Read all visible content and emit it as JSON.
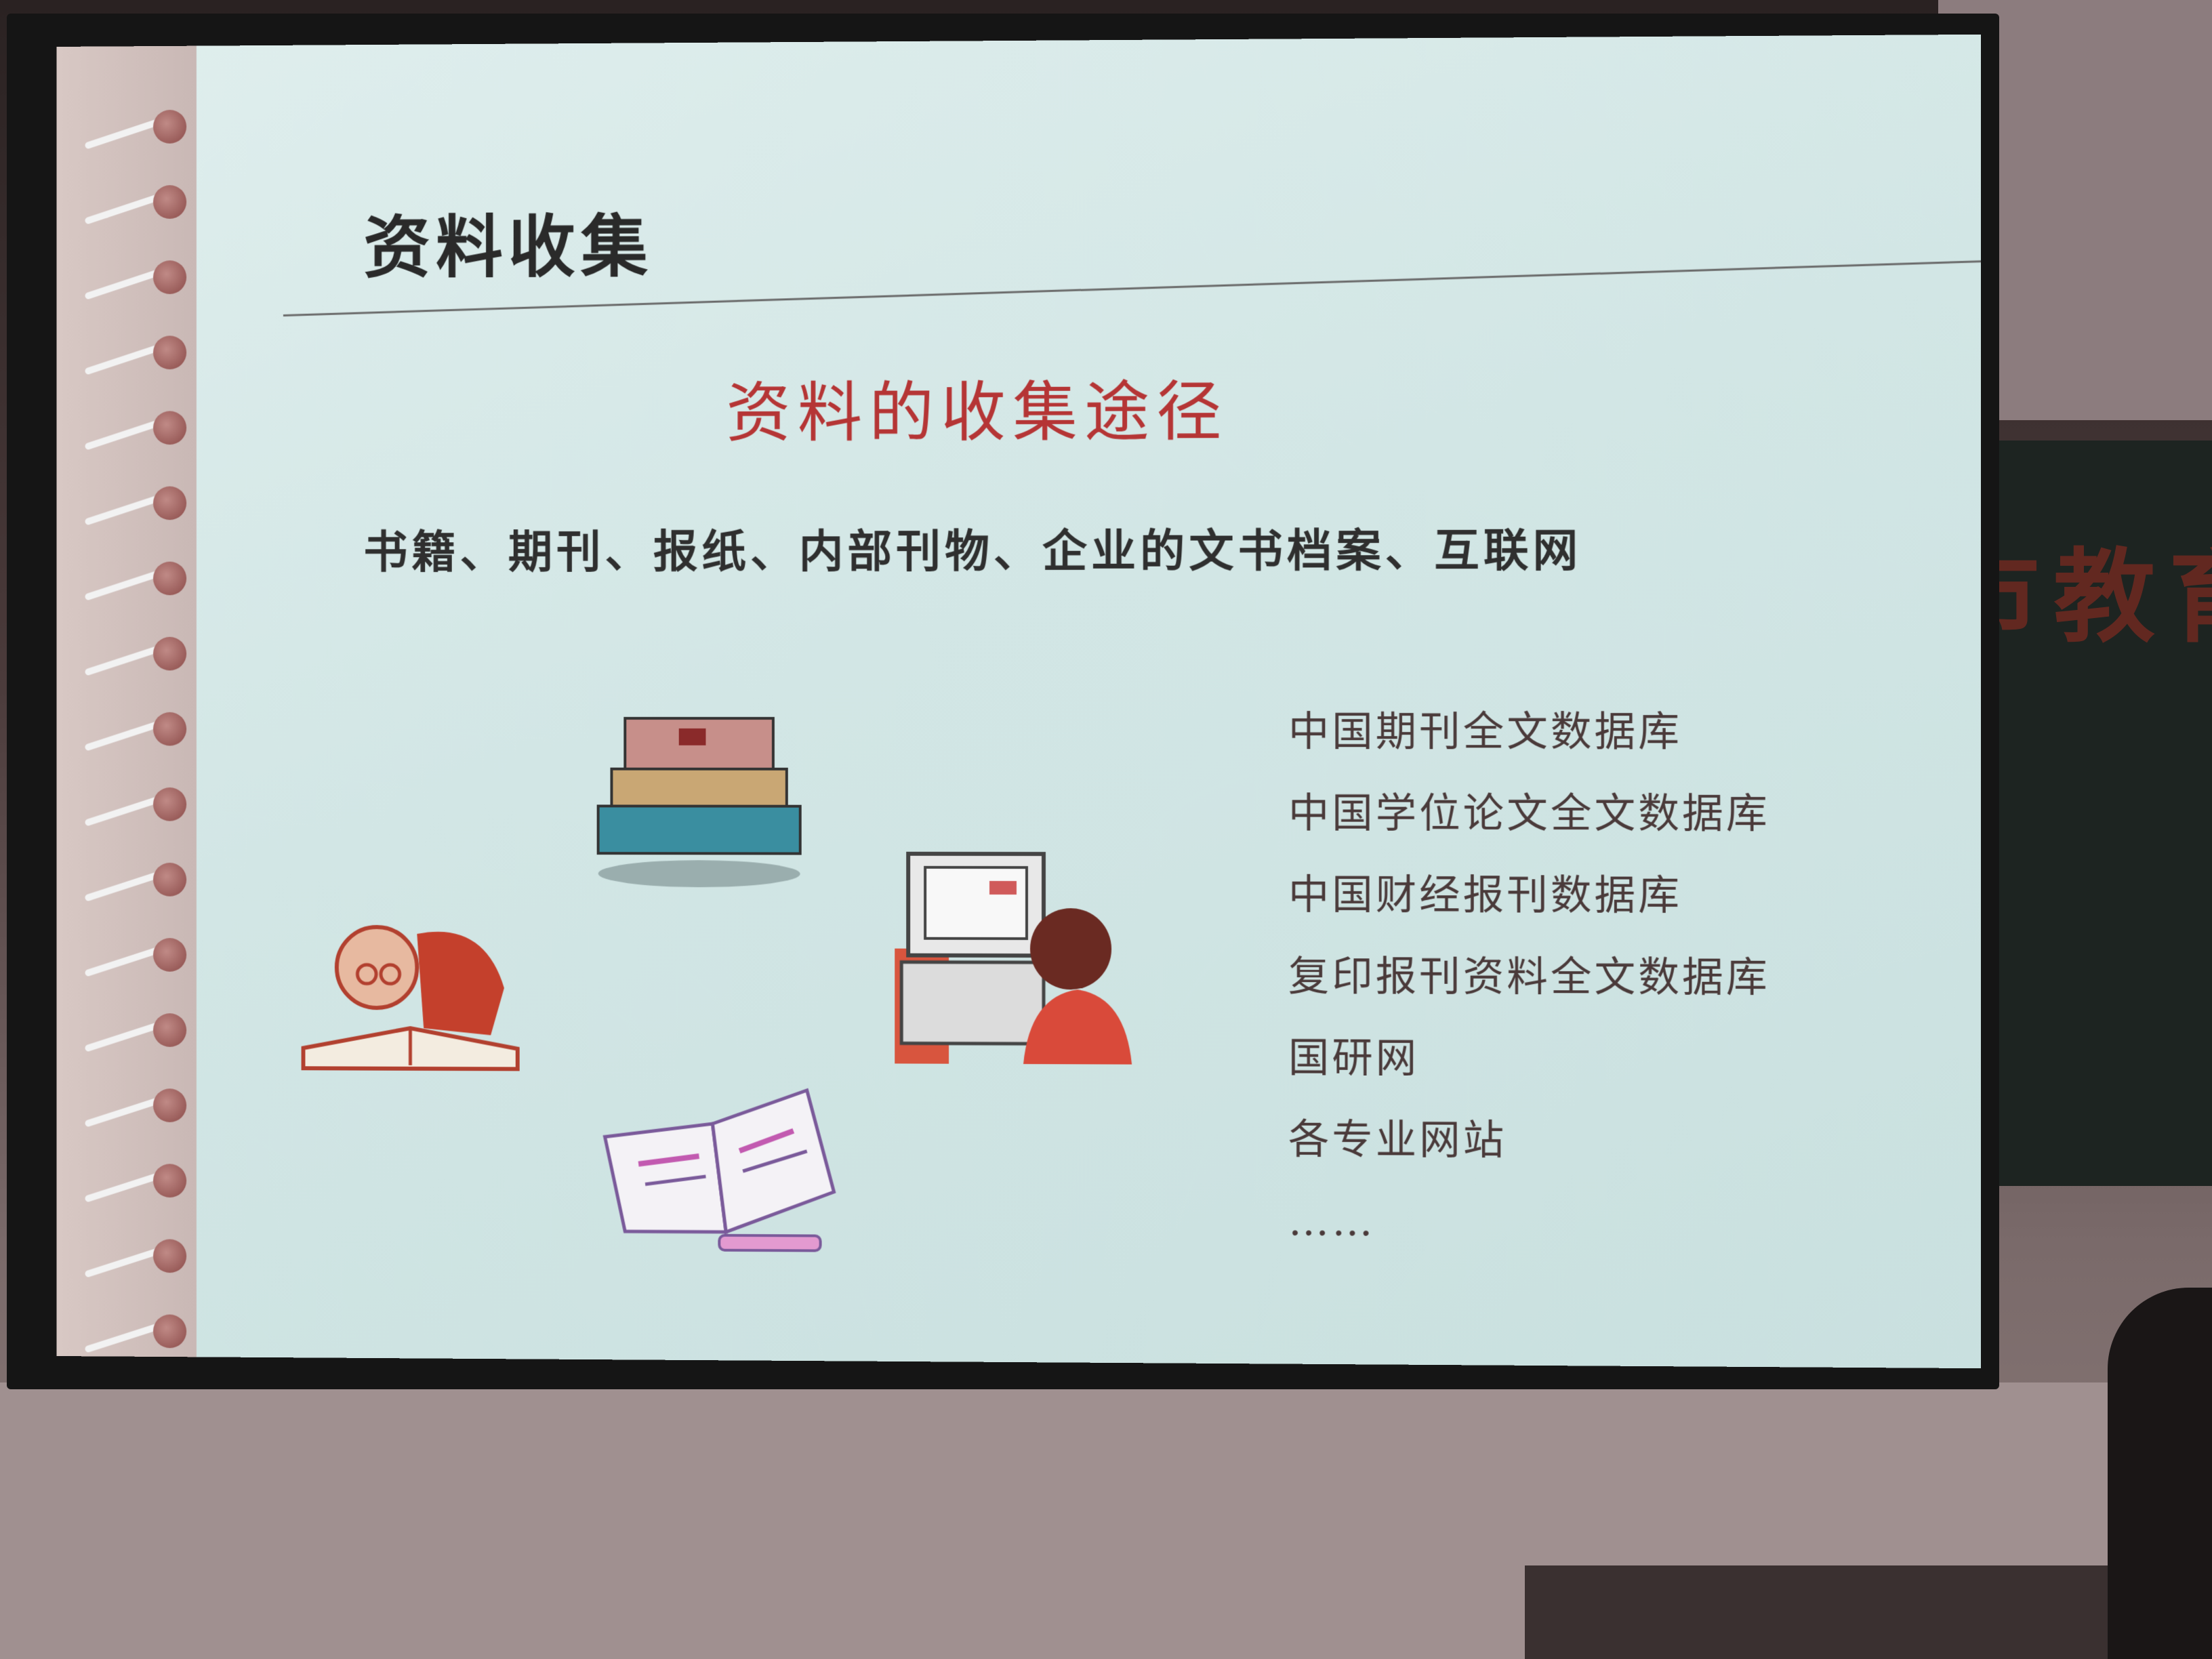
{
  "slide": {
    "title": "资料收集",
    "subtitle": "资料的收集途径",
    "sources_line": "书籍、期刊、报纸、内部刊物、企业的文书档案、互联网",
    "databases": [
      "中国期刊全文数据库",
      "中国学位论文全文数据库",
      "中国财经报刊数据库",
      "复印报刊资料全文数据库",
      "国研网",
      "各专业网站",
      "……"
    ]
  },
  "background": {
    "board_text": "市教育"
  },
  "colors": {
    "slide_bg": "#d2e6e5",
    "title": "#2a2a2a",
    "subtitle": "#b53535",
    "body_text": "#2f2f2f",
    "list_text": "#4a3a3a"
  },
  "icons": [
    "book-stack-icon",
    "reading-man-icon",
    "computer-user-icon",
    "open-book-icon"
  ]
}
